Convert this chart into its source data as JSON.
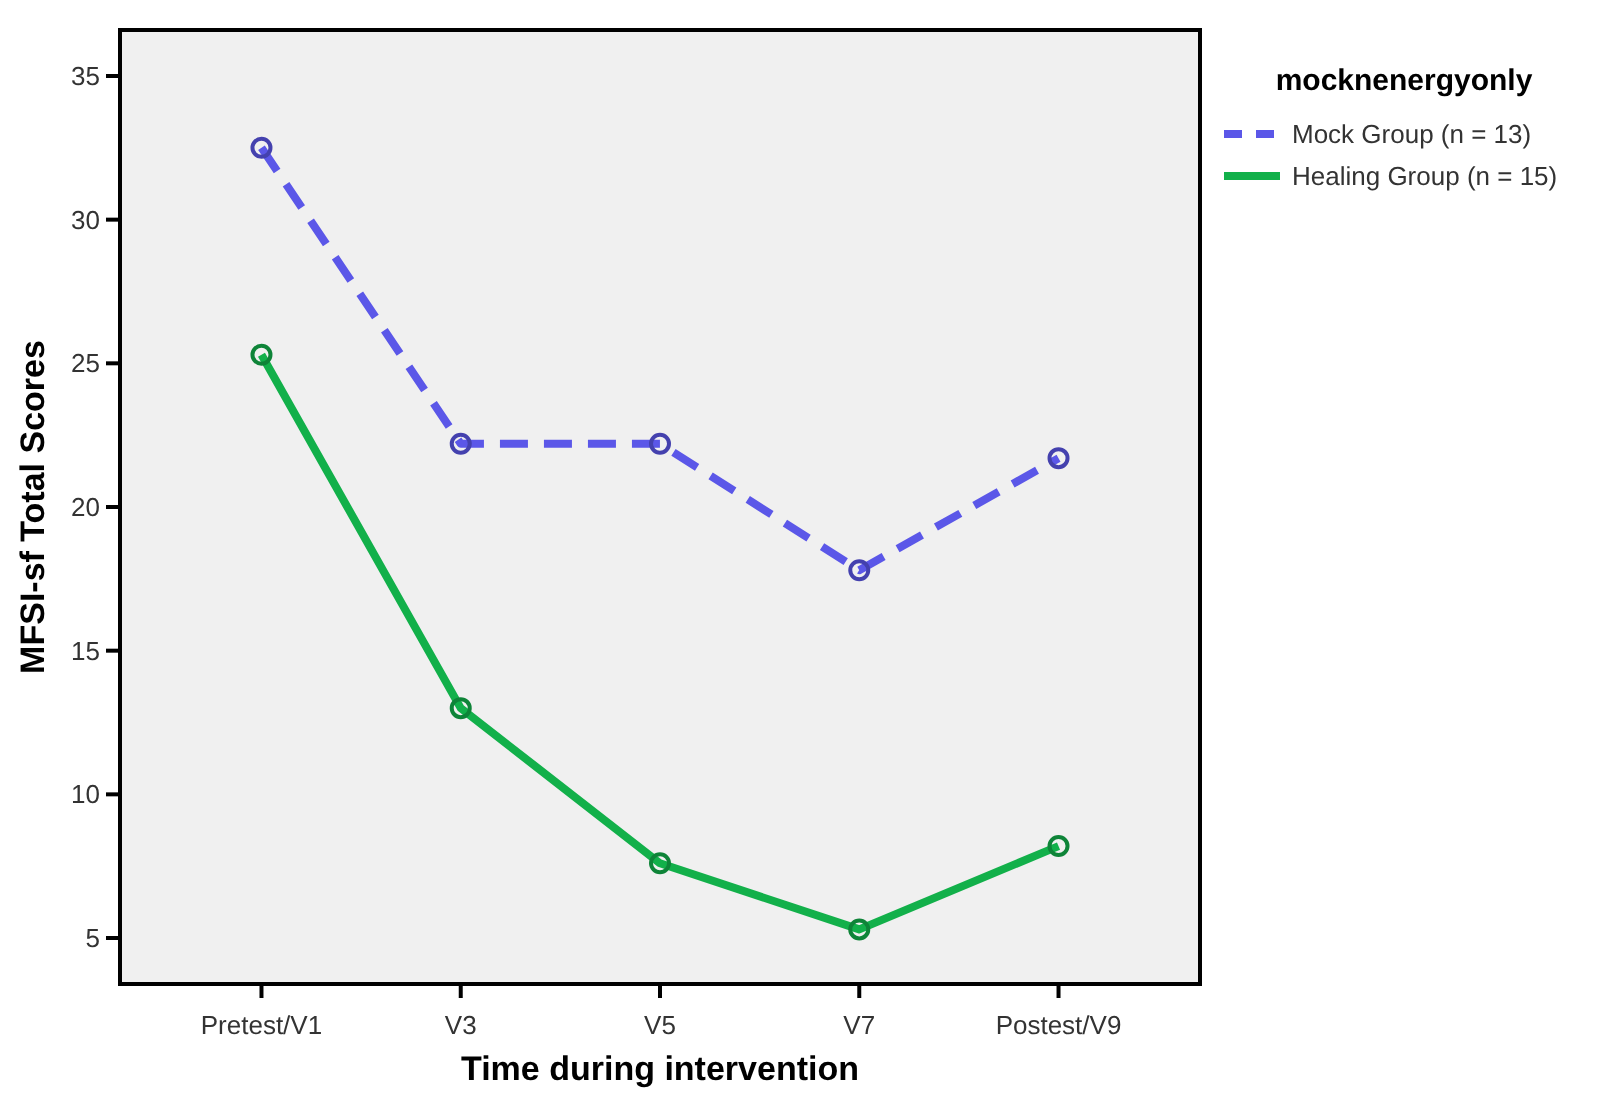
{
  "chart_data": {
    "type": "line",
    "xlabel": "Time during intervention",
    "ylabel": "MFSI-sf Total Scores",
    "legend_title": "mocknenergyonly",
    "categories": [
      "Pretest/V1",
      "V3",
      "V5",
      "V7",
      "Postest/V9"
    ],
    "series": [
      {
        "name": "Mock Group (n = 13)",
        "color": "#5b57e8",
        "line_style": "dashed",
        "values": [
          32.5,
          22.2,
          22.2,
          17.8,
          21.7
        ]
      },
      {
        "name": "Healing Group (n = 15)",
        "color": "#12b04a",
        "line_style": "solid",
        "values": [
          25.3,
          13.0,
          7.6,
          5.3,
          8.2
        ]
      }
    ],
    "ylim": [
      3.4,
      36.6
    ],
    "yticks": [
      5,
      10,
      15,
      20,
      25,
      30,
      35
    ],
    "grid": false,
    "legend": "top right",
    "marker": "circle"
  }
}
